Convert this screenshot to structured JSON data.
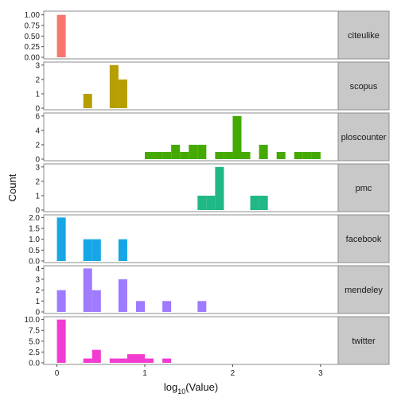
{
  "chart_data": {
    "type": "bar",
    "layout": "faceted-histogram",
    "xlabel_base": "log",
    "xlabel_sub": "10",
    "xlabel_rest": "(Value)",
    "ylabel": "Count",
    "xlim": [
      -0.15,
      3.2
    ],
    "x_ticks": [
      0,
      1,
      2,
      3
    ],
    "x_tick_labels": [
      "0",
      "1",
      "2",
      "3"
    ],
    "bin_width": 0.1,
    "panels": [
      {
        "name": "citeulike",
        "color": "#F8766D",
        "ylim": [
          0,
          1.05
        ],
        "y_ticks": [
          0,
          0.25,
          0.5,
          0.75,
          1
        ],
        "y_tick_labels": [
          "0.00",
          "0.25",
          "0.50",
          "0.75",
          "1.00"
        ],
        "bins": [
          {
            "x": 0.05,
            "count": 1
          }
        ]
      },
      {
        "name": "scopus",
        "color": "#B79F00",
        "ylim": [
          0,
          3.1
        ],
        "y_ticks": [
          0,
          1,
          2,
          3
        ],
        "y_tick_labels": [
          "0",
          "1",
          "2",
          "3"
        ],
        "bins": [
          {
            "x": 0.35,
            "count": 1
          },
          {
            "x": 0.65,
            "count": 3
          },
          {
            "x": 0.75,
            "count": 2
          }
        ]
      },
      {
        "name": "ploscounter",
        "color": "#44AA00",
        "ylim": [
          0,
          6.2
        ],
        "y_ticks": [
          0,
          2,
          4,
          6
        ],
        "y_tick_labels": [
          "0",
          "2",
          "4",
          "6"
        ],
        "bins": [
          {
            "x": 1.05,
            "count": 1
          },
          {
            "x": 1.15,
            "count": 1
          },
          {
            "x": 1.25,
            "count": 1
          },
          {
            "x": 1.35,
            "count": 2
          },
          {
            "x": 1.45,
            "count": 1
          },
          {
            "x": 1.55,
            "count": 2
          },
          {
            "x": 1.65,
            "count": 2
          },
          {
            "x": 1.85,
            "count": 1
          },
          {
            "x": 1.95,
            "count": 1
          },
          {
            "x": 2.05,
            "count": 6
          },
          {
            "x": 2.15,
            "count": 1
          },
          {
            "x": 2.35,
            "count": 2
          },
          {
            "x": 2.55,
            "count": 1
          },
          {
            "x": 2.75,
            "count": 1
          },
          {
            "x": 2.85,
            "count": 1
          },
          {
            "x": 2.95,
            "count": 1
          }
        ]
      },
      {
        "name": "pmc",
        "color": "#1FB886",
        "ylim": [
          0,
          3.1
        ],
        "y_ticks": [
          0,
          1,
          2,
          3
        ],
        "y_tick_labels": [
          "0",
          "1",
          "2",
          "3"
        ],
        "bins": [
          {
            "x": 1.65,
            "count": 1
          },
          {
            "x": 1.75,
            "count": 1
          },
          {
            "x": 1.85,
            "count": 3
          },
          {
            "x": 2.25,
            "count": 1
          },
          {
            "x": 2.35,
            "count": 1
          }
        ]
      },
      {
        "name": "facebook",
        "color": "#16A6E5",
        "ylim": [
          0,
          2.05
        ],
        "y_ticks": [
          0,
          0.5,
          1,
          1.5,
          2
        ],
        "y_tick_labels": [
          "0.0",
          "0.5",
          "1.0",
          "1.5",
          "2.0"
        ],
        "bins": [
          {
            "x": 0.05,
            "count": 2
          },
          {
            "x": 0.35,
            "count": 1
          },
          {
            "x": 0.45,
            "count": 1
          },
          {
            "x": 0.75,
            "count": 1
          }
        ]
      },
      {
        "name": "mendeley",
        "color": "#9E7BFF",
        "ylim": [
          0,
          4.1
        ],
        "y_ticks": [
          0,
          1,
          2,
          3,
          4
        ],
        "y_tick_labels": [
          "0",
          "1",
          "2",
          "3",
          "4"
        ],
        "bins": [
          {
            "x": 0.05,
            "count": 2
          },
          {
            "x": 0.35,
            "count": 4
          },
          {
            "x": 0.45,
            "count": 2
          },
          {
            "x": 0.75,
            "count": 3
          },
          {
            "x": 0.95,
            "count": 1
          },
          {
            "x": 1.25,
            "count": 1
          },
          {
            "x": 1.65,
            "count": 1
          }
        ]
      },
      {
        "name": "twitter",
        "color": "#F23BD0",
        "ylim": [
          0,
          10.3
        ],
        "y_ticks": [
          0,
          2.5,
          5,
          7.5,
          10
        ],
        "y_tick_labels": [
          "0.0",
          "2.5",
          "5.0",
          "7.5",
          "10.0"
        ],
        "bins": [
          {
            "x": 0.05,
            "count": 10
          },
          {
            "x": 0.35,
            "count": 1
          },
          {
            "x": 0.45,
            "count": 3
          },
          {
            "x": 0.65,
            "count": 1
          },
          {
            "x": 0.75,
            "count": 1
          },
          {
            "x": 0.85,
            "count": 2
          },
          {
            "x": 0.95,
            "count": 2
          },
          {
            "x": 1.05,
            "count": 1
          },
          {
            "x": 1.25,
            "count": 1
          }
        ]
      }
    ]
  }
}
